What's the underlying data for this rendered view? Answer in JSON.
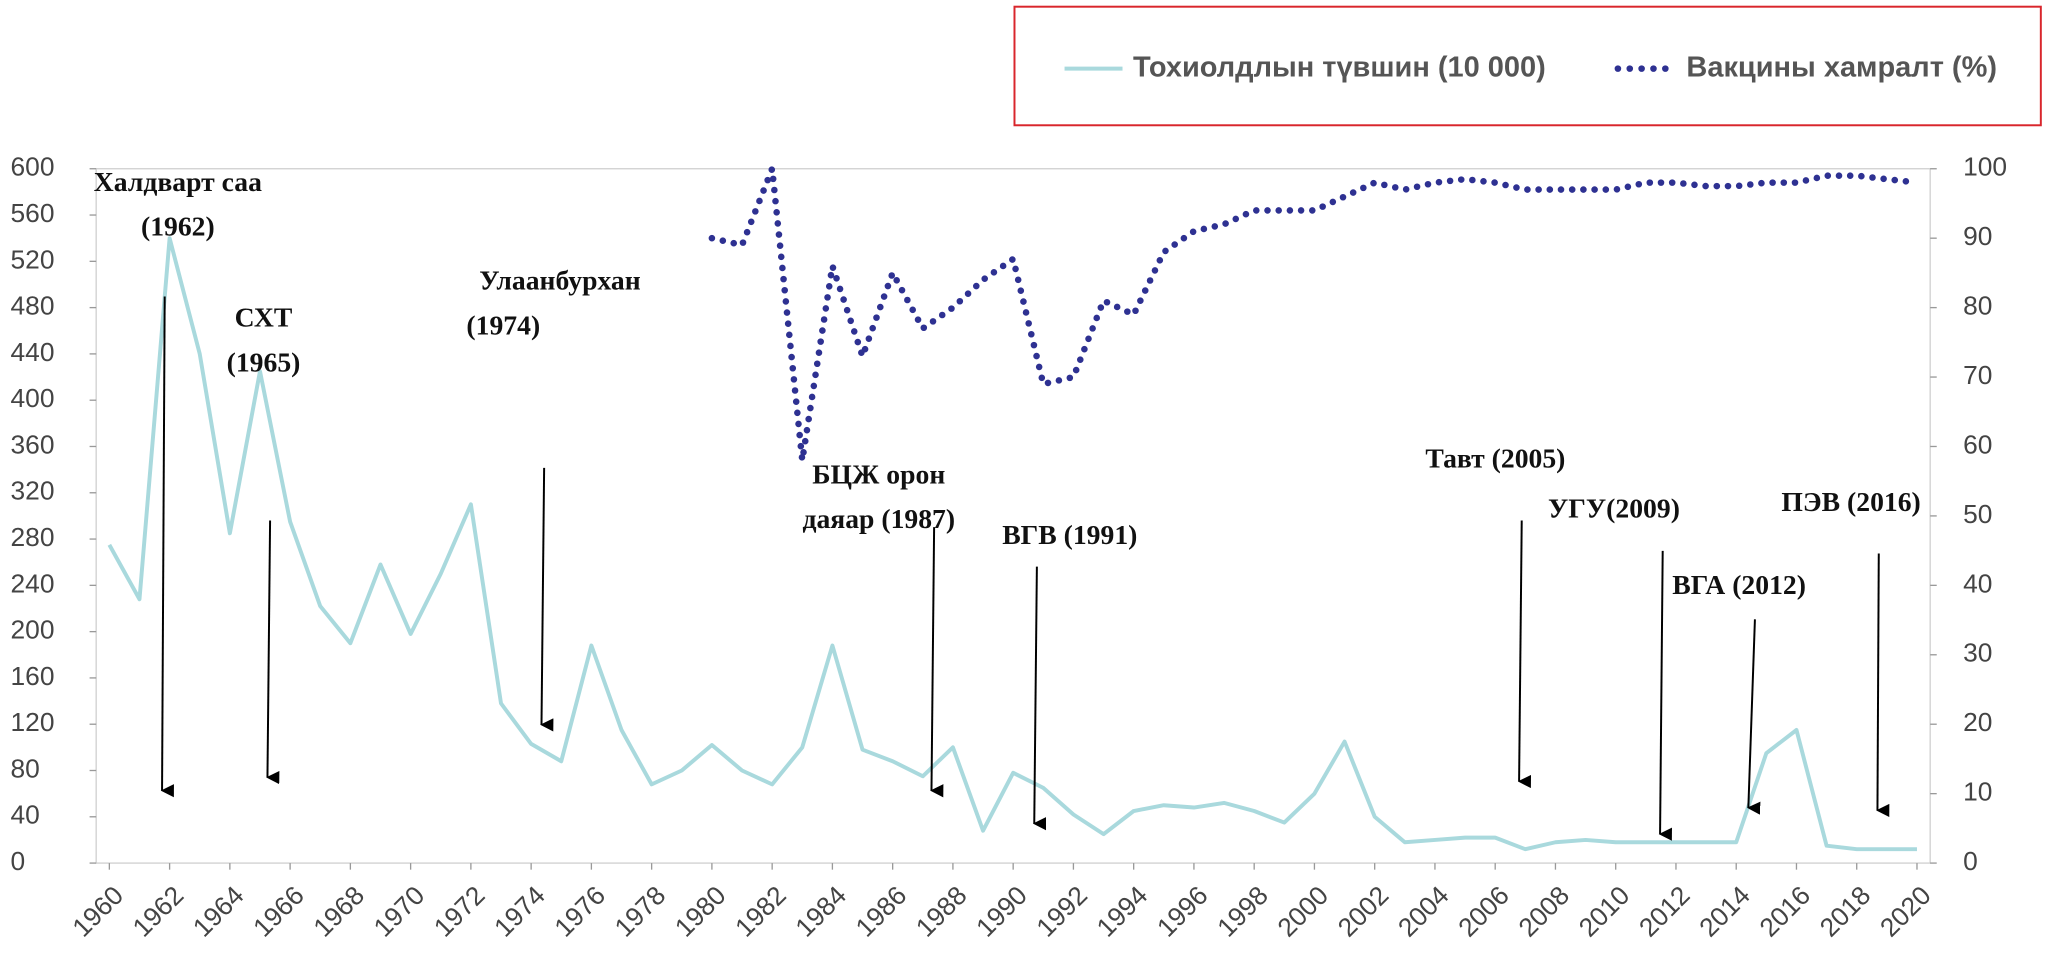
{
  "chart_data": {
    "type": "line",
    "x": [
      1960,
      1961,
      1962,
      1963,
      1964,
      1965,
      1966,
      1967,
      1968,
      1969,
      1970,
      1971,
      1972,
      1973,
      1974,
      1975,
      1976,
      1977,
      1978,
      1979,
      1980,
      1981,
      1982,
      1983,
      1984,
      1985,
      1986,
      1987,
      1988,
      1989,
      1990,
      1991,
      1992,
      1993,
      1994,
      1995,
      1996,
      1997,
      1998,
      1999,
      2000,
      2001,
      2002,
      2003,
      2004,
      2005,
      2006,
      2007,
      2008,
      2009,
      2010,
      2011,
      2012,
      2013,
      2014,
      2015,
      2016,
      2017,
      2018,
      2019,
      2020
    ],
    "series": [
      {
        "name": "Тохиолдлын түвшин (10 000)",
        "color": "#a9d9dd",
        "axis": "y",
        "values": [
          275,
          228,
          540,
          440,
          285,
          425,
          295,
          222,
          190,
          258,
          198,
          250,
          310,
          138,
          103,
          88,
          188,
          115,
          68,
          80,
          102,
          80,
          68,
          100,
          188,
          98,
          88,
          75,
          100,
          28,
          78,
          65,
          42,
          25,
          45,
          50,
          48,
          52,
          45,
          35,
          60,
          105,
          40,
          18,
          20,
          22,
          22,
          12,
          18,
          20,
          18,
          18,
          18,
          18,
          18,
          95,
          115,
          15,
          12,
          12,
          12
        ]
      },
      {
        "name": "Вакцины хамралт (%)",
        "color": "#2e3192",
        "axis": "y2",
        "style": "dotted",
        "values": [
          null,
          null,
          null,
          null,
          null,
          null,
          null,
          null,
          null,
          null,
          null,
          null,
          null,
          null,
          null,
          null,
          null,
          null,
          null,
          null,
          90,
          89,
          100,
          58,
          86,
          73,
          85,
          77,
          80,
          84,
          87,
          69,
          70,
          81,
          79,
          88,
          91,
          92,
          94,
          94,
          94,
          96,
          98,
          97,
          98,
          98.5,
          98,
          97,
          97,
          97,
          97,
          98,
          98,
          97.5,
          97.5,
          98,
          98,
          99,
          99,
          98.5,
          98
        ]
      }
    ],
    "xlim": [
      1960,
      2020
    ],
    "xticks": [
      1960,
      1962,
      1964,
      1966,
      1968,
      1970,
      1972,
      1974,
      1976,
      1978,
      1980,
      1982,
      1984,
      1986,
      1988,
      1990,
      1992,
      1994,
      1996,
      1998,
      2000,
      2002,
      2004,
      2006,
      2008,
      2010,
      2012,
      2014,
      2016,
      2018,
      2020
    ],
    "ylim": [
      0,
      600
    ],
    "yticks": [
      0,
      40,
      80,
      120,
      160,
      200,
      240,
      280,
      320,
      360,
      400,
      440,
      480,
      520,
      560,
      600
    ],
    "y2lim": [
      0,
      100
    ],
    "y2ticks": [
      0,
      10,
      20,
      30,
      40,
      50,
      60,
      70,
      80,
      90,
      100
    ],
    "legend": "top-right",
    "annotations": [
      {
        "lines": [
          "Халдварт саа",
          "(1962)"
        ]
      },
      {
        "lines": [
          "СХТ",
          "(1965)"
        ]
      },
      {
        "lines": [
          "Улаанбурхан",
          "(1974)"
        ]
      },
      {
        "lines": [
          "БЦЖ орон",
          "даяар (1987)"
        ]
      },
      {
        "lines": [
          "ВГВ (1991)"
        ]
      },
      {
        "lines": [
          "Тавт (2005)"
        ]
      },
      {
        "lines": [
          "УГУ(2009)"
        ]
      },
      {
        "lines": [
          "ВГА (2012)"
        ]
      },
      {
        "lines": [
          "ПЭВ (2016)"
        ]
      }
    ]
  }
}
